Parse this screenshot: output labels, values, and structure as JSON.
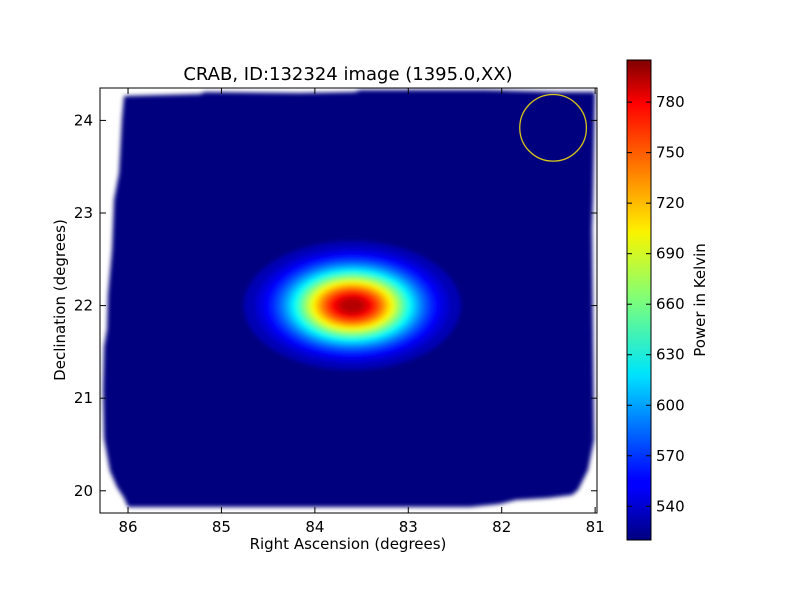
{
  "chart_data": {
    "type": "heatmap",
    "title": "CRAB, ID:132324 image (1395.0,XX)",
    "xlabel": "Right Ascension (degrees)",
    "ylabel": "Declination (degrees)",
    "xlim": [
      86.3,
      80.98
    ],
    "ylim": [
      19.76,
      24.35
    ],
    "x_ticks": [
      "86",
      "85",
      "84",
      "83",
      "82",
      "81"
    ],
    "y_ticks": [
      "20",
      "21",
      "22",
      "23",
      "24"
    ],
    "x_tick_values": [
      86,
      85,
      84,
      83,
      82,
      81
    ],
    "y_tick_values": [
      20,
      21,
      22,
      23,
      24
    ],
    "grid": false,
    "colormap": "jet",
    "colorbar": {
      "label": "Power in Kelvin",
      "range": [
        520,
        805
      ],
      "ticks": [
        "540",
        "570",
        "600",
        "630",
        "660",
        "690",
        "720",
        "750",
        "780"
      ],
      "tick_values": [
        540,
        570,
        600,
        630,
        660,
        690,
        720,
        750,
        780
      ]
    },
    "background_level": 525,
    "source": {
      "ra": 83.6,
      "dec": 22.0,
      "peak": 800,
      "sigma_ra_deg": 0.45,
      "sigma_dec_deg": 0.27
    },
    "beam_circle": {
      "ra": 81.45,
      "dec": 23.92,
      "radius_deg": 0.36,
      "color": "#d4c41a"
    }
  }
}
